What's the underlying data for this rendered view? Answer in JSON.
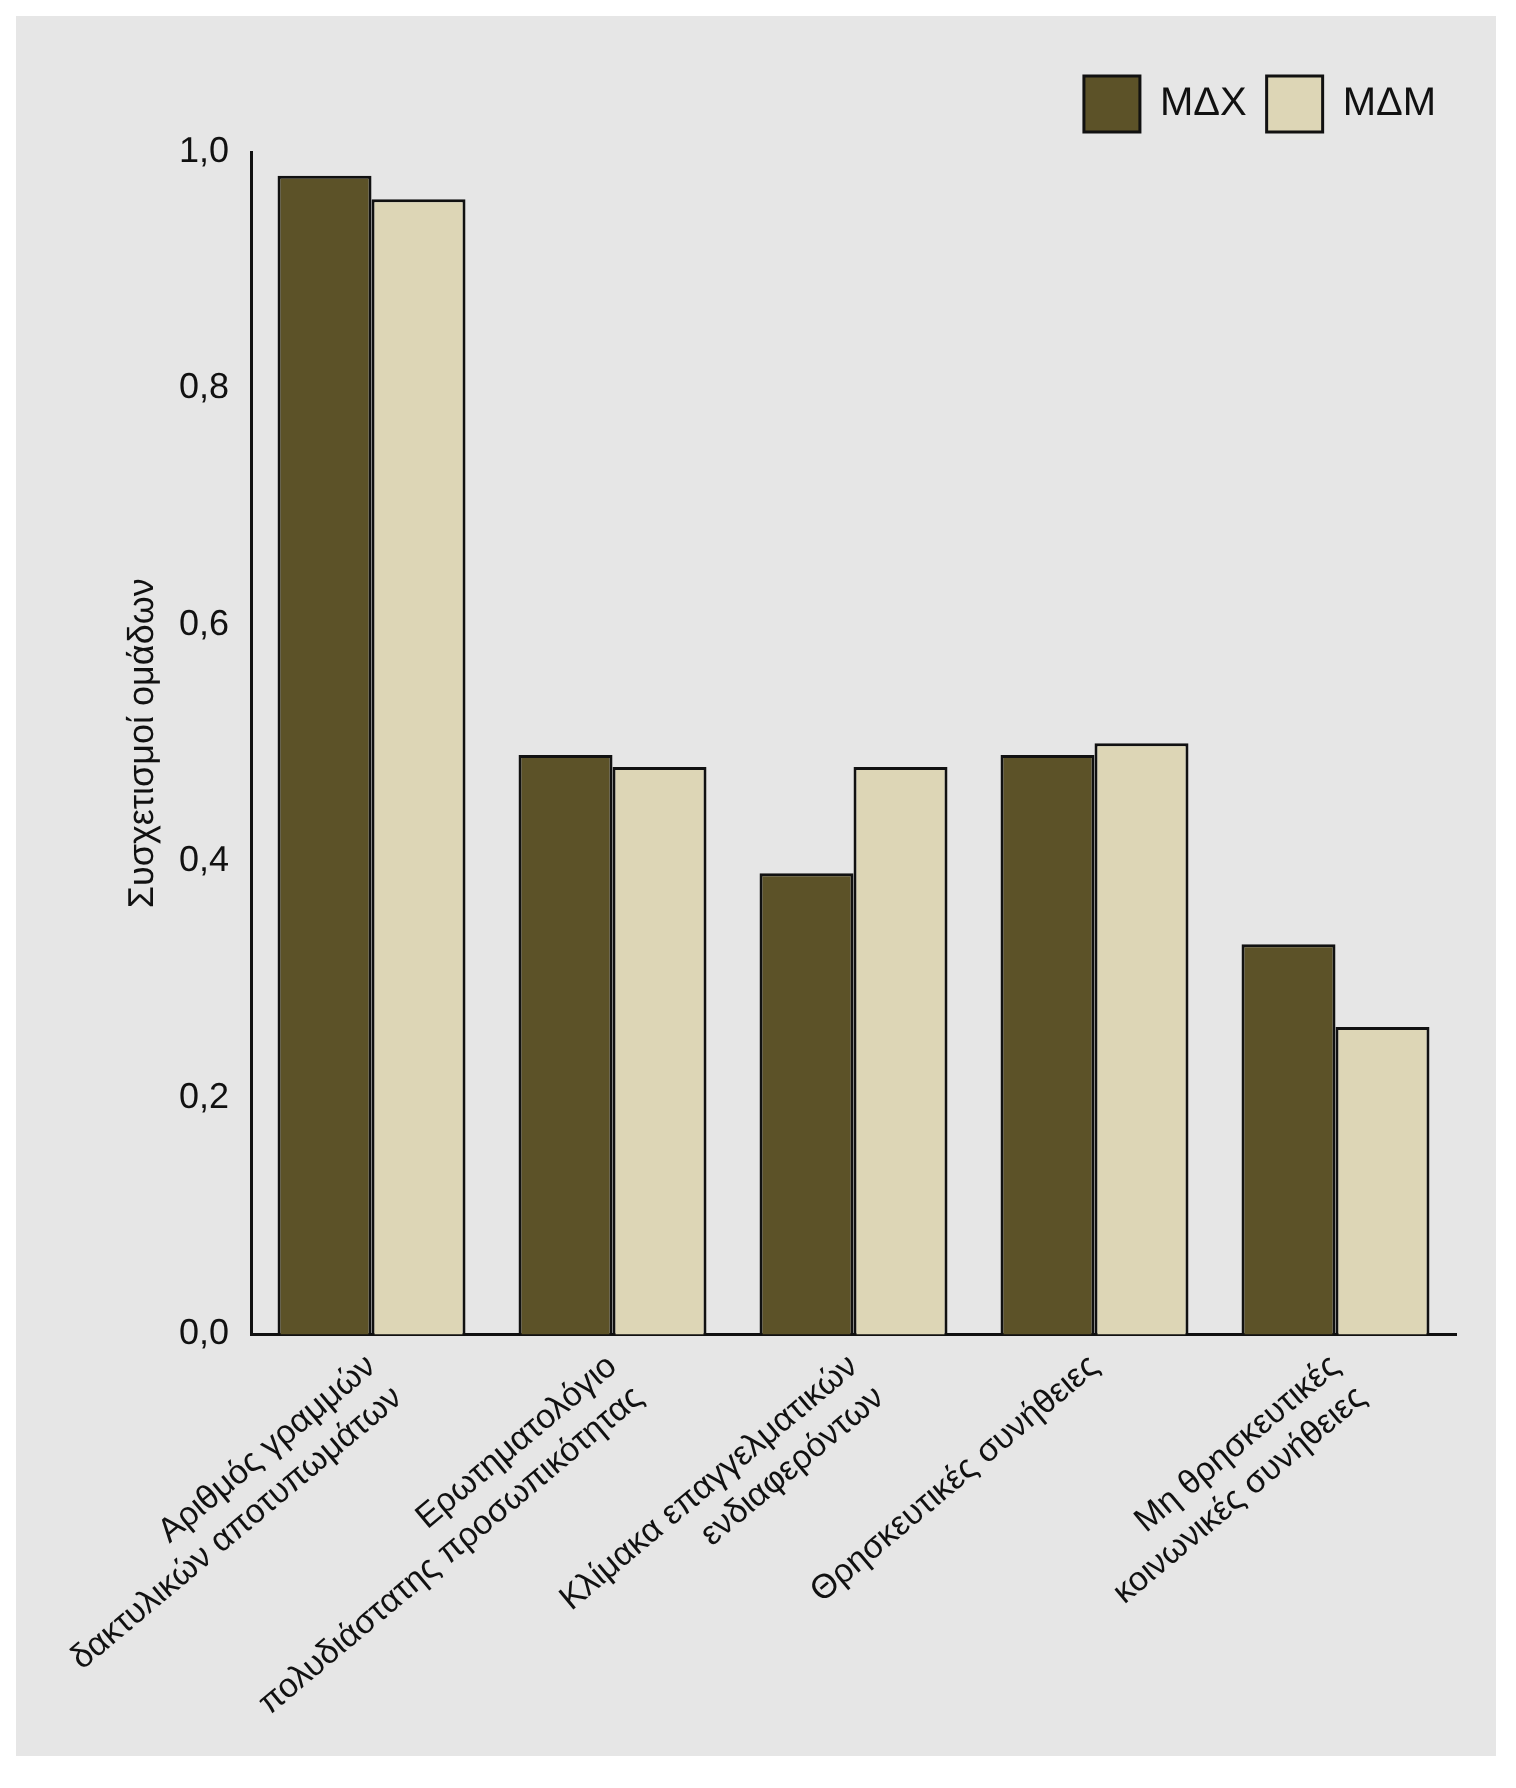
{
  "chart_data": {
    "type": "bar",
    "ylabel": "Συσχετισμοί ομάδων",
    "categories": [
      "Αριθμός γραμμών\nδακτυλικών αποτυπωμάτων",
      "Ερωτηματολόγιο\nπολυδιάστατης προσωπικότητας",
      "Κλίμακα επαγγελματικών\nενδιαφερόντων",
      "Θρησκευτικές συνήθειες",
      "Μη θρησκευτικές\nκοινωνικές συνήθειες"
    ],
    "series": [
      {
        "name": "ΜΔΧ",
        "color": "#5c5228",
        "values": [
          0.98,
          0.49,
          0.39,
          0.49,
          0.33
        ]
      },
      {
        "name": "ΜΔΜ",
        "color": "#ddd6b6",
        "values": [
          0.96,
          0.48,
          0.48,
          0.5,
          0.26
        ]
      }
    ],
    "ylim": [
      0,
      1
    ],
    "yticks": [
      {
        "value": 0,
        "label": "0,0"
      },
      {
        "value": 0.2,
        "label": "0,2"
      },
      {
        "value": 0.4,
        "label": "0,4"
      },
      {
        "value": 0.6,
        "label": "0,6"
      },
      {
        "value": 0.8,
        "label": "0,8"
      },
      {
        "value": 1,
        "label": "1,0"
      }
    ],
    "grid": false,
    "legend": "top right"
  }
}
